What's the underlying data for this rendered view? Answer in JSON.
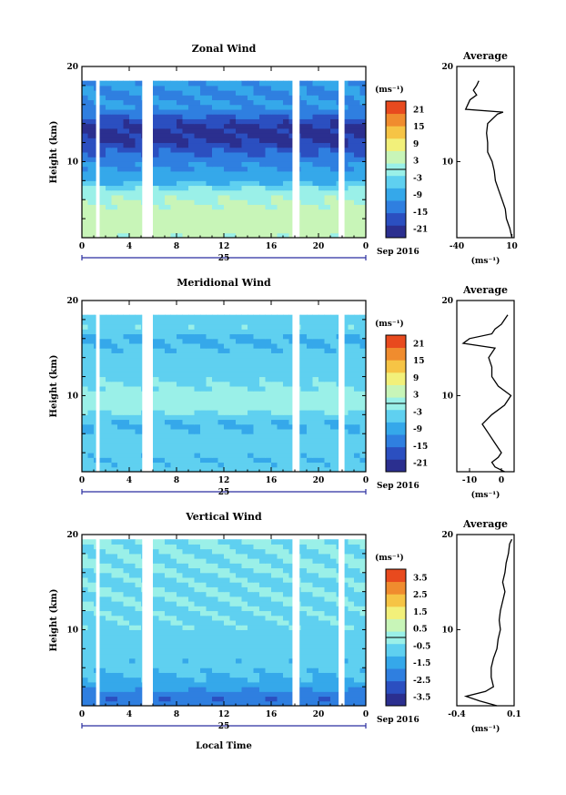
{
  "figure": {
    "xlabel": "Local Time",
    "ylabel": "Height (km)",
    "date_label": "Sep 2016",
    "day_label": "25",
    "units": "(ms⁻¹)",
    "avg_title": "Average",
    "palette": [
      "#2b2f8f",
      "#2b4fc0",
      "#2f7fe0",
      "#35a8ea",
      "#5fd0f0",
      "#9af0e8",
      "#c8f5b8",
      "#f2f07a",
      "#f6c445",
      "#f08c2e",
      "#e84a1e"
    ]
  },
  "chart_data": [
    {
      "type": "heatmap",
      "title": "Zonal Wind",
      "xlabel": "Local Time",
      "ylabel": "Height (km)",
      "xlim": [
        0,
        24
      ],
      "ylim": [
        2,
        20
      ],
      "xticks": [
        "0",
        "4",
        "8",
        "12",
        "16",
        "20",
        "0"
      ],
      "yticks": [
        "10",
        "20"
      ],
      "z_units": "(ms⁻¹)",
      "colorbar": {
        "range": [
          -24,
          24
        ],
        "ticks": [
          "21",
          "15",
          "9",
          "3",
          "-3",
          "-9",
          "-15",
          "-21"
        ]
      },
      "data_gaps_hours": [
        [
          1.2,
          1.5
        ],
        [
          5.1,
          6.0
        ],
        [
          17.8,
          18.4
        ],
        [
          21.7,
          22.2
        ]
      ],
      "profile_heights_km": [
        2,
        3,
        4,
        5,
        6,
        7,
        8,
        9,
        10,
        11,
        12,
        13,
        14,
        15,
        16,
        17,
        18
      ],
      "profile_values": [
        3,
        4,
        4,
        4,
        2,
        -1,
        -8,
        -10,
        -12,
        -15,
        -20,
        -21,
        -20,
        -14,
        -10,
        -12,
        -10
      ],
      "average_profile": {
        "title": "Average",
        "xlim": [
          -40,
          12
        ],
        "xticks": [
          "-40",
          "10"
        ],
        "xlabel": "(ms⁻¹)",
        "heights_km": [
          2,
          3,
          4,
          5,
          6,
          7,
          8,
          9,
          10,
          11,
          12,
          13,
          14,
          15,
          15.2,
          15.5,
          16,
          16.5,
          17,
          17.5,
          18,
          18.5
        ],
        "values": [
          10,
          8,
          5,
          4,
          1,
          -2,
          -5,
          -6,
          -8,
          -12,
          -12,
          -13,
          -12,
          -3,
          2,
          -32,
          -30,
          -28,
          -22,
          -25,
          -22,
          -20
        ]
      }
    },
    {
      "type": "heatmap",
      "title": "Meridional Wind",
      "xlabel": "Local Time",
      "ylabel": "Height (km)",
      "xlim": [
        0,
        24
      ],
      "ylim": [
        2,
        20
      ],
      "xticks": [
        "0",
        "4",
        "8",
        "12",
        "16",
        "20",
        "0"
      ],
      "yticks": [
        "10",
        "20"
      ],
      "z_units": "(ms⁻¹)",
      "colorbar": {
        "range": [
          -24,
          24
        ],
        "ticks": [
          "21",
          "15",
          "9",
          "3",
          "-3",
          "-9",
          "-15",
          "-21"
        ]
      },
      "data_gaps_hours": [
        [
          1.2,
          1.5
        ],
        [
          5.1,
          6.0
        ],
        [
          17.8,
          18.4
        ],
        [
          21.7,
          22.2
        ]
      ],
      "profile_heights_km": [
        2,
        3,
        4,
        5,
        6,
        7,
        8,
        9,
        10,
        11,
        12,
        13,
        14,
        15,
        16,
        17,
        18
      ],
      "profile_values": [
        -3,
        -6,
        -5,
        -4,
        -5,
        -7,
        -3,
        0,
        1,
        -2,
        -4,
        -5,
        -4,
        -6,
        -8,
        -3,
        -5
      ],
      "average_profile": {
        "title": "Average",
        "xlim": [
          -14,
          4
        ],
        "xticks": [
          "-10",
          "0"
        ],
        "xlabel": "(ms⁻¹)",
        "heights_km": [
          2,
          2.5,
          3,
          3.5,
          4,
          5,
          6,
          7,
          8,
          9,
          10,
          11,
          12,
          13,
          14,
          15,
          15.5,
          16,
          16.5,
          17,
          17.5,
          18,
          18.5
        ],
        "values": [
          1,
          -2,
          -3,
          -1,
          0,
          -2,
          -4,
          -6,
          -3,
          1,
          3,
          -1,
          -3,
          -3,
          -4,
          -2,
          -12,
          -10,
          -3,
          -2,
          0,
          1,
          2
        ]
      }
    },
    {
      "type": "heatmap",
      "title": "Vertical Wind",
      "xlabel": "Local Time",
      "ylabel": "Height (km)",
      "xlim": [
        0,
        24
      ],
      "ylim": [
        2,
        20
      ],
      "xticks": [
        "0",
        "4",
        "8",
        "12",
        "16",
        "20",
        "0"
      ],
      "yticks": [
        "10",
        "20"
      ],
      "z_units": "(ms⁻¹)",
      "colorbar": {
        "range": [
          -4,
          4
        ],
        "ticks": [
          "3.5",
          "2.5",
          "1.5",
          "0.5",
          "-0.5",
          "-1.5",
          "-2.5",
          "-3.5"
        ]
      },
      "data_gaps_hours": [
        [
          1.2,
          1.5
        ],
        [
          5.1,
          6.0
        ],
        [
          17.8,
          18.4
        ],
        [
          21.7,
          22.2
        ]
      ],
      "profile_heights_km": [
        2,
        3,
        4,
        5,
        6,
        7,
        8,
        9,
        10,
        11,
        12,
        13,
        14,
        15,
        16,
        17,
        18,
        19
      ],
      "profile_values": [
        -2,
        -2.5,
        -1.5,
        -1.2,
        -0.8,
        -0.9,
        -0.7,
        -0.8,
        -0.6,
        -0.5,
        -0.5,
        -0.4,
        -0.4,
        -0.5,
        -0.4,
        -0.3,
        -0.4,
        -0.3
      ],
      "average_profile": {
        "title": "Average",
        "xlim": [
          -0.4,
          0.1
        ],
        "xticks": [
          "-0.4",
          "0.1"
        ],
        "xlabel": "(ms⁻¹)",
        "heights_km": [
          2,
          2.5,
          3,
          3.5,
          4,
          5,
          6,
          7,
          8,
          9,
          10,
          11,
          12,
          13,
          14,
          15,
          16,
          17,
          18,
          19,
          19.5
        ],
        "values": [
          -0.05,
          -0.2,
          -0.32,
          -0.15,
          -0.08,
          -0.1,
          -0.1,
          -0.08,
          -0.05,
          -0.04,
          -0.02,
          -0.03,
          -0.02,
          0.0,
          0.02,
          0.0,
          0.02,
          0.03,
          0.05,
          0.06,
          0.08
        ]
      }
    }
  ]
}
